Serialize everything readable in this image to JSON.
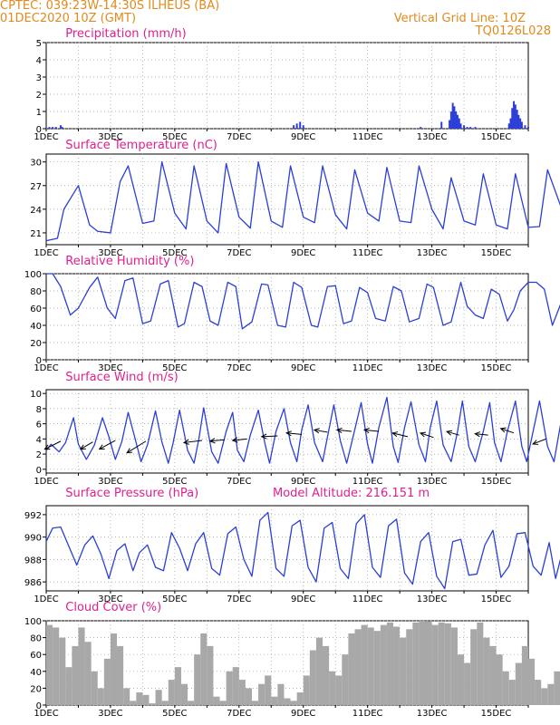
{
  "header": {
    "line1": "CPTEC:    039:23W-14:30S   ILHEUS (BA)",
    "line2": "01DEC2020  10Z (GMT)",
    "grid_note": "Vertical Grid Line: 10Z",
    "code": "TQ0126L028",
    "model_altitude": "Model Altitude: 216.151  m",
    "text_color": "#e08a1e",
    "title_color": "#e0208c"
  },
  "colors": {
    "line": "#2b3fd8",
    "bar": "#2b3fd8",
    "cloud": "#a8a8a8",
    "frame": "#000000"
  },
  "time_axis": {
    "start": "01DEC2020 10Z",
    "end": "16DEC2020 10Z",
    "tick_labels": [
      "1DEC",
      "3DEC",
      "5DEC",
      "7DEC",
      "9DEC",
      "11DEC",
      "13DEC",
      "15DEC"
    ],
    "vertical_grid_line": "10Z"
  },
  "chart_data": [
    {
      "type": "bar",
      "title": "Precipitation  (mm/h)",
      "ylim": [
        0,
        5
      ],
      "yticks": [
        "0",
        "1",
        "2",
        "3",
        "4",
        "5"
      ],
      "x_days": [
        0.1,
        0.2,
        0.3,
        0.45,
        0.5,
        7.7,
        7.8,
        7.9,
        8.0,
        11.65,
        12.3,
        12.55,
        12.6,
        12.65,
        12.7,
        12.75,
        12.8,
        12.85,
        12.9,
        13.0,
        13.1,
        13.2,
        13.35,
        14.4,
        14.45,
        14.5,
        14.55,
        14.6,
        14.65,
        14.7,
        14.75,
        14.8,
        14.9,
        15.0
      ],
      "values": [
        0.1,
        0.1,
        0.1,
        0.2,
        0.1,
        0.2,
        0.3,
        0.4,
        0.2,
        0.1,
        0.4,
        0.5,
        1.0,
        1.5,
        1.3,
        1.0,
        0.8,
        0.6,
        0.3,
        0.2,
        0.1,
        0.1,
        0.1,
        0.3,
        0.6,
        1.2,
        1.6,
        1.4,
        1.1,
        0.8,
        0.6,
        0.4,
        0.2,
        0.1
      ]
    },
    {
      "type": "line",
      "title": "Surface Temperature (nC)",
      "ylim": [
        19.5,
        31
      ],
      "yticks": [
        "21",
        "24",
        "27",
        "30"
      ],
      "x_days": [
        0,
        0.35,
        0.55,
        1.0,
        1.35,
        1.6,
        2.0,
        2.3,
        2.55,
        3.0,
        3.35,
        3.6,
        4.0,
        4.35,
        4.6,
        5.0,
        5.35,
        5.6,
        6.0,
        6.35,
        6.6,
        7.0,
        7.35,
        7.6,
        8.0,
        8.35,
        8.6,
        9.0,
        9.35,
        9.6,
        10.0,
        10.35,
        10.6,
        11.0,
        11.35,
        11.6,
        12.0,
        12.35,
        12.6,
        13.0,
        13.35,
        13.6,
        14.0,
        14.35,
        14.6,
        15.0,
        15.35,
        15.6,
        16.0
      ],
      "values": [
        20,
        20.3,
        24,
        27,
        22,
        21.2,
        21,
        27.5,
        29.5,
        22.2,
        22.5,
        30,
        23.5,
        21.5,
        29.5,
        22.5,
        21,
        29.8,
        23,
        21.6,
        30,
        22.5,
        21.7,
        29.5,
        23,
        22.3,
        29.5,
        23.3,
        21.5,
        29,
        23.5,
        22.5,
        29.3,
        22.5,
        22.3,
        29.5,
        24,
        21.5,
        28,
        22.5,
        22,
        28.5,
        22,
        21.5,
        28.5,
        21.7,
        21.8,
        29,
        24.5
      ]
    },
    {
      "type": "line",
      "title": "Relative Humidity  (%)",
      "ylim": [
        0,
        100
      ],
      "yticks": [
        "0",
        "20",
        "40",
        "60",
        "80",
        "100"
      ],
      "x_days": [
        0,
        0.2,
        0.45,
        0.75,
        1.0,
        1.35,
        1.6,
        1.9,
        2.15,
        2.45,
        2.7,
        3.0,
        3.25,
        3.55,
        3.8,
        4.1,
        4.3,
        4.6,
        4.85,
        5.1,
        5.35,
        5.65,
        5.9,
        6.1,
        6.4,
        6.7,
        6.9,
        7.2,
        7.45,
        7.7,
        7.95,
        8.25,
        8.45,
        8.75,
        9.0,
        9.25,
        9.5,
        9.75,
        10.0,
        10.25,
        10.55,
        10.8,
        11.05,
        11.3,
        11.6,
        11.85,
        12.05,
        12.35,
        12.6,
        12.9,
        13.1,
        13.35,
        13.6,
        13.85,
        14.1,
        14.35,
        14.55,
        14.75,
        15.0,
        15.25,
        15.5,
        15.75,
        16.0
      ],
      "values": [
        100,
        100,
        85,
        52,
        60,
        84,
        96,
        60,
        48,
        92,
        95,
        42,
        45,
        88,
        92,
        38,
        42,
        90,
        85,
        45,
        40,
        90,
        85,
        36,
        44,
        88,
        87,
        40,
        38,
        90,
        84,
        40,
        38,
        85,
        86,
        42,
        45,
        84,
        78,
        48,
        45,
        85,
        80,
        44,
        48,
        88,
        84,
        40,
        44,
        90,
        62,
        52,
        48,
        82,
        76,
        45,
        58,
        80,
        90,
        90,
        82,
        40,
        64
      ]
    },
    {
      "type": "line",
      "title": "Surface Wind  (m/s)",
      "ylim": [
        -0.5,
        10.5
      ],
      "yticks": [
        "0",
        "2",
        "4",
        "6",
        "8",
        "10"
      ],
      "x_days": [
        0,
        0.15,
        0.4,
        0.6,
        0.85,
        1.0,
        1.25,
        1.5,
        1.75,
        1.95,
        2.15,
        2.35,
        2.55,
        2.75,
        2.95,
        3.15,
        3.4,
        3.6,
        3.8,
        3.95,
        4.15,
        4.4,
        4.6,
        4.75,
        4.9,
        5.15,
        5.35,
        5.6,
        5.8,
        5.95,
        6.15,
        6.35,
        6.6,
        6.8,
        6.95,
        7.15,
        7.4,
        7.6,
        7.8,
        7.95,
        8.15,
        8.35,
        8.6,
        8.8,
        8.95,
        9.15,
        9.35,
        9.6,
        9.8,
        10.0,
        10.15,
        10.35,
        10.6,
        10.8,
        10.95,
        11.15,
        11.35,
        11.6,
        11.8,
        11.95,
        12.15,
        12.35,
        12.6,
        12.8,
        12.95,
        13.15,
        13.35,
        13.6,
        13.8,
        13.95,
        14.15,
        14.35,
        14.6,
        14.8,
        14.95,
        15.15,
        15.35,
        15.6,
        15.8,
        16.0
      ],
      "values": [
        2.5,
        3.3,
        2.3,
        3.5,
        6.8,
        3.3,
        1.3,
        3.2,
        6.8,
        4.3,
        1.3,
        3.6,
        7.5,
        4.3,
        1.0,
        3.2,
        7.7,
        3.6,
        0.8,
        3.5,
        7.8,
        2.5,
        0.8,
        4.0,
        8.1,
        2.3,
        0.8,
        5.0,
        7.5,
        2.5,
        1.0,
        4.5,
        7.8,
        3.5,
        0.8,
        5.0,
        8.0,
        3.5,
        1.0,
        5.2,
        8.5,
        3.5,
        1.0,
        5.3,
        8.5,
        3.8,
        0.8,
        5.2,
        8.8,
        3.3,
        0.8,
        5.5,
        9.5,
        3.0,
        0.9,
        5.5,
        8.9,
        3.2,
        1.0,
        5.5,
        9.0,
        3.2,
        1.0,
        5.0,
        9.0,
        3.0,
        1.0,
        5.0,
        8.8,
        3.5,
        1.0,
        5.0,
        9.0,
        3.0,
        1.0,
        5.0,
        9.0,
        3.0,
        1.0,
        5.8
      ],
      "vectors_x_days": [
        0.45,
        1.45,
        2.15,
        3.1,
        4.85,
        5.55,
        6.25,
        7.2,
        7.95,
        8.75,
        9.5,
        10.35,
        11.25,
        12.05,
        12.85,
        13.75,
        14.55,
        15.55
      ],
      "vectors_u": [
        -2.2,
        -1.7,
        -2.2,
        -2.6,
        -2.5,
        -2.0,
        -2.0,
        -2.2,
        -2.1,
        -1.8,
        -2.0,
        -2.0,
        -2.1,
        -1.8,
        -1.7,
        -1.8,
        -1.8,
        -1.8
      ],
      "vectors_v": [
        -1.1,
        -1.0,
        -1.2,
        -1.6,
        -0.3,
        -0.2,
        -0.2,
        -0.1,
        0.2,
        0.3,
        0.2,
        0.2,
        0.5,
        0.6,
        0.5,
        0.2,
        0.6,
        -0.7
      ],
      "vectors_y": [
        3.7,
        3.6,
        3.8,
        3.7,
        3.8,
        3.9,
        4.0,
        4.4,
        4.6,
        4.9,
        5.0,
        5.0,
        4.3,
        4.2,
        4.5,
        4.5,
        4.8,
        4.0
      ]
    },
    {
      "type": "line",
      "title": "Surface Pressure (hPa)",
      "ylim": [
        985.2,
        992.8
      ],
      "yticks": [
        "986",
        "988",
        "990",
        "992"
      ],
      "x_days": [
        0,
        0.2,
        0.45,
        0.7,
        0.95,
        1.2,
        1.45,
        1.7,
        1.95,
        2.2,
        2.45,
        2.7,
        2.9,
        3.15,
        3.4,
        3.65,
        3.9,
        4.15,
        4.4,
        4.65,
        4.9,
        5.15,
        5.4,
        5.65,
        5.9,
        6.15,
        6.4,
        6.65,
        6.9,
        7.15,
        7.4,
        7.65,
        7.9,
        8.15,
        8.4,
        8.65,
        8.9,
        9.15,
        9.4,
        9.65,
        9.9,
        10.15,
        10.4,
        10.65,
        10.9,
        11.15,
        11.4,
        11.65,
        11.9,
        12.15,
        12.4,
        12.65,
        12.9,
        13.15,
        13.4,
        13.65,
        13.9,
        14.15,
        14.4,
        14.65,
        14.9,
        15.15,
        15.4,
        15.65,
        15.85,
        16.0
      ],
      "values": [
        989.6,
        990.8,
        990.9,
        989.2,
        987.5,
        989.3,
        990.1,
        988.5,
        986.3,
        988.8,
        989.4,
        987.0,
        988.6,
        989.3,
        987.3,
        987.0,
        990.4,
        989.0,
        987.0,
        989.4,
        990.4,
        987.2,
        986.6,
        990.3,
        990.9,
        988.0,
        986.5,
        991.5,
        992.2,
        987.2,
        986.5,
        991.0,
        991.5,
        987.3,
        986.0,
        990.8,
        991.3,
        987.2,
        986.3,
        991.2,
        992.0,
        987.3,
        986.4,
        991.0,
        991.6,
        986.8,
        985.8,
        989.6,
        990.4,
        986.5,
        985.4,
        989.6,
        989.8,
        986.6,
        986.7,
        989.3,
        990.6,
        986.4,
        987.4,
        990.3,
        990.4,
        987.4,
        986.6,
        989.5,
        986.3,
        988.0
      ]
    },
    {
      "type": "bar",
      "title": "Cloud Cover  (%)",
      "ylim": [
        0,
        100
      ],
      "yticks": [
        "0",
        "20",
        "40",
        "60",
        "80",
        "100"
      ],
      "x_days": [
        0,
        0.2,
        0.4,
        0.6,
        0.8,
        1.0,
        1.2,
        1.4,
        1.6,
        1.8,
        2.0,
        2.2,
        2.4,
        2.6,
        2.8,
        3.0,
        3.2,
        3.4,
        3.6,
        3.8,
        4.0,
        4.2,
        4.4,
        4.6,
        4.8,
        5.0,
        5.2,
        5.4,
        5.6,
        5.8,
        6.0,
        6.2,
        6.4,
        6.6,
        6.8,
        7.0,
        7.2,
        7.4,
        7.6,
        7.8,
        8.0,
        8.2,
        8.4,
        8.6,
        8.8,
        9.0,
        9.2,
        9.4,
        9.6,
        9.8,
        10.0,
        10.2,
        10.4,
        10.6,
        10.8,
        11.0,
        11.2,
        11.4,
        11.6,
        11.8,
        12.0,
        12.2,
        12.4,
        12.6,
        12.8,
        13.0,
        13.2,
        13.4,
        13.6,
        13.8,
        14.0,
        14.2,
        14.4,
        14.6,
        14.8,
        15.0,
        15.2,
        15.4,
        15.6,
        15.8,
        16.0
      ],
      "values": [
        95,
        92,
        80,
        45,
        70,
        92,
        75,
        40,
        20,
        55,
        85,
        70,
        20,
        5,
        15,
        12,
        2,
        18,
        5,
        30,
        45,
        25,
        5,
        60,
        85,
        70,
        10,
        5,
        40,
        45,
        30,
        20,
        5,
        25,
        35,
        10,
        25,
        8,
        5,
        15,
        35,
        65,
        80,
        70,
        40,
        35,
        60,
        85,
        90,
        95,
        92,
        88,
        95,
        98,
        93,
        80,
        90,
        98,
        100,
        99,
        95,
        98,
        97,
        92,
        60,
        50,
        90,
        98,
        80,
        70,
        60,
        40,
        30,
        50,
        70,
        55,
        30,
        20,
        25,
        40,
        10
      ]
    }
  ]
}
